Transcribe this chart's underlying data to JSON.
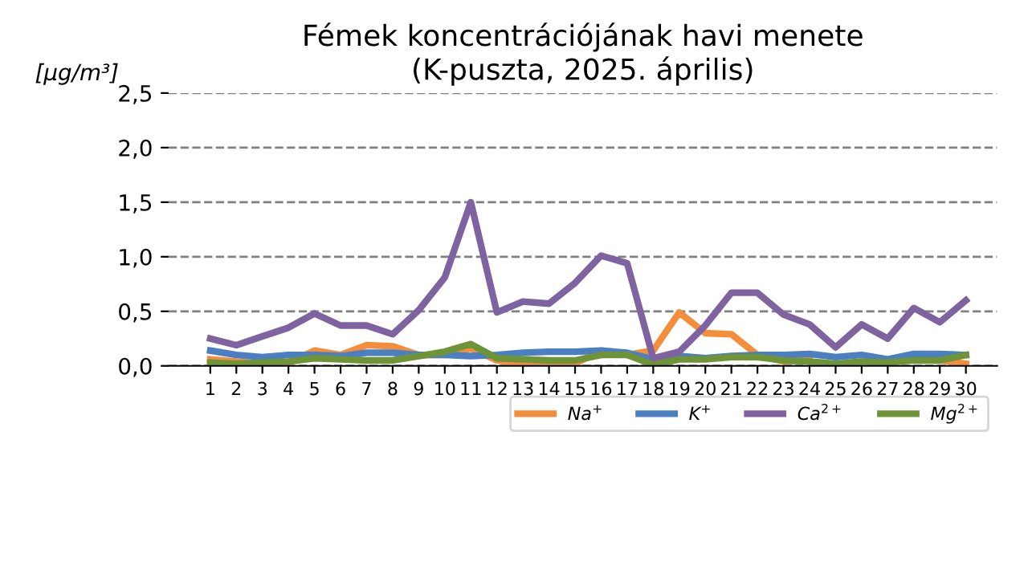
{
  "chart_data": {
    "type": "line",
    "title": "Fémek koncentrációjának havi menete\n(K-puszta, 2025. április)",
    "ylabel": "[μg/m³]",
    "categories": [
      "1",
      "2",
      "3",
      "4",
      "5",
      "6",
      "7",
      "8",
      "9",
      "10",
      "11",
      "12",
      "13",
      "14",
      "15",
      "16",
      "17",
      "18",
      "19",
      "20",
      "21",
      "22",
      "23",
      "24",
      "25",
      "26",
      "27",
      "28",
      "29",
      "30"
    ],
    "series": [
      {
        "name": "Na$^{+}$",
        "color": "#f58e3c",
        "values": [
          0.06,
          0.04,
          0.02,
          0.03,
          0.14,
          0.1,
          0.19,
          0.18,
          0.1,
          0.1,
          0.16,
          0.05,
          0.02,
          0.04,
          0.02,
          0.14,
          0.1,
          0.14,
          0.49,
          0.3,
          0.29,
          0.1,
          0.04,
          0.06,
          null,
          null,
          null,
          0.06,
          0.05,
          0.02
        ]
      },
      {
        "name": "K$^{+}$",
        "color": "#4a7fc1",
        "values": [
          0.14,
          0.1,
          0.08,
          0.1,
          0.1,
          0.09,
          0.12,
          0.12,
          0.1,
          0.1,
          0.09,
          0.1,
          0.12,
          0.13,
          0.13,
          0.14,
          0.12,
          0.06,
          0.09,
          0.07,
          0.09,
          0.1,
          0.1,
          0.11,
          0.08,
          0.1,
          0.06,
          0.11,
          0.11,
          0.1
        ]
      },
      {
        "name": "Ca$^{2+}$",
        "color": "#7f62a0",
        "values": [
          0.25,
          0.19,
          0.27,
          0.35,
          0.48,
          0.37,
          0.37,
          0.29,
          0.51,
          0.81,
          1.5,
          0.49,
          0.59,
          0.57,
          0.76,
          1.01,
          0.94,
          0.07,
          0.13,
          0.37,
          0.67,
          0.67,
          0.47,
          0.38,
          0.17,
          0.38,
          0.25,
          0.53,
          0.4,
          0.6
        ]
      },
      {
        "name": "Mg$^{2+}$",
        "color": "#6f9438",
        "values": [
          0.03,
          0.02,
          0.03,
          0.04,
          0.07,
          0.06,
          0.05,
          0.05,
          0.09,
          0.13,
          0.2,
          0.07,
          0.06,
          0.05,
          0.05,
          0.1,
          0.1,
          0.01,
          0.06,
          0.06,
          0.08,
          0.08,
          0.05,
          0.04,
          0.02,
          0.04,
          0.03,
          0.05,
          0.05,
          0.1
        ]
      }
    ],
    "ylim": [
      0,
      2.5
    ],
    "yticks": [
      {
        "value": 0,
        "label": "0,0"
      },
      {
        "value": 0.5,
        "label": "0,5"
      },
      {
        "value": 1.0,
        "label": "1,0"
      },
      {
        "value": 1.5,
        "label": "1,5"
      },
      {
        "value": 2.0,
        "label": "2,0"
      },
      {
        "value": 2.5,
        "label": "2,5"
      }
    ],
    "grid": "y",
    "legend": "bottom right",
    "line_style": "solid",
    "marker": "none"
  }
}
